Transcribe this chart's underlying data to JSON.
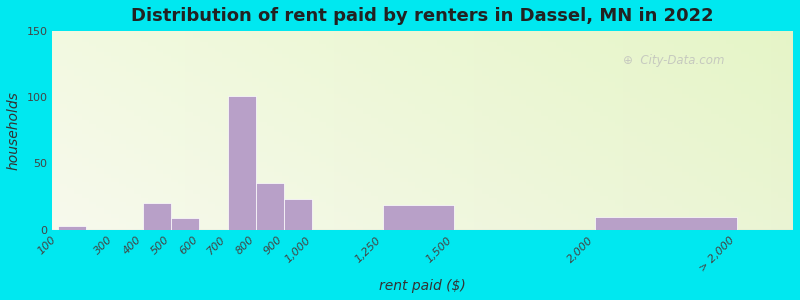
{
  "title": "Distribution of rent paid by renters in Dassel, MN in 2022",
  "xlabel": "rent paid ($)",
  "ylabel": "households",
  "ylim": [
    0,
    150
  ],
  "yticks": [
    0,
    50,
    100,
    150
  ],
  "tick_labels": [
    "100",
    "300",
    "400",
    "500",
    "600",
    "700",
    "800",
    "900",
    "1,000",
    "1,250",
    "1,500",
    "2,000",
    "> 2,000"
  ],
  "tick_positions": [
    100,
    300,
    400,
    500,
    600,
    700,
    800,
    900,
    1000,
    1250,
    1500,
    2000,
    2500
  ],
  "bar_lefts": [
    100,
    300,
    400,
    500,
    600,
    700,
    800,
    900,
    1000,
    1250,
    1500,
    2000
  ],
  "bar_widths": [
    100,
    100,
    100,
    100,
    100,
    100,
    100,
    100,
    250,
    250,
    500,
    500
  ],
  "bar_heights": [
    3,
    0,
    20,
    9,
    0,
    101,
    35,
    23,
    0,
    19,
    0,
    10
  ],
  "bar_color": "#b8a0c8",
  "bar_edge_color": "#ffffff",
  "background_outer": "#00e8f0",
  "title_fontsize": 13,
  "axis_label_fontsize": 10,
  "tick_fontsize": 8,
  "watermark": "City-Data.com",
  "xlim": [
    80,
    2700
  ]
}
